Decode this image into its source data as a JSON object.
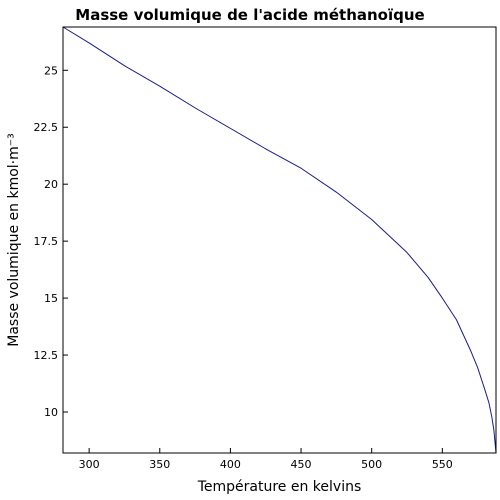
{
  "chart_data": {
    "type": "line",
    "title": "Masse volumique de l'acide méthanoïque",
    "xlabel": "Température en kelvins",
    "ylabel": "Masse volumique en kmol·m⁻³",
    "xlim": [
      281.5,
      588
    ],
    "ylim": [
      8.2,
      26.9
    ],
    "xticks": [
      300,
      350,
      400,
      450,
      500,
      550
    ],
    "yticks": [
      10,
      12.5,
      15,
      17.5,
      20,
      22.5,
      25
    ],
    "ytick_labels": [
      "10",
      "12.5",
      "15",
      "17.5",
      "20",
      "22.5",
      "25"
    ],
    "grid": false,
    "line_color": "#1a1a8c",
    "series": [
      {
        "name": "",
        "x": [
          281.5,
          300,
          325,
          350,
          375,
          400,
          425,
          450,
          475,
          500,
          525,
          540,
          550,
          560,
          570,
          575,
          580,
          583,
          585,
          586.5,
          588
        ],
        "y": [
          26.9,
          26.2,
          25.2,
          24.3,
          23.35,
          22.45,
          21.55,
          20.7,
          19.65,
          18.45,
          17.0,
          15.9,
          15.0,
          14.05,
          12.7,
          11.95,
          11.0,
          10.4,
          9.8,
          9.2,
          8.2
        ]
      }
    ]
  }
}
